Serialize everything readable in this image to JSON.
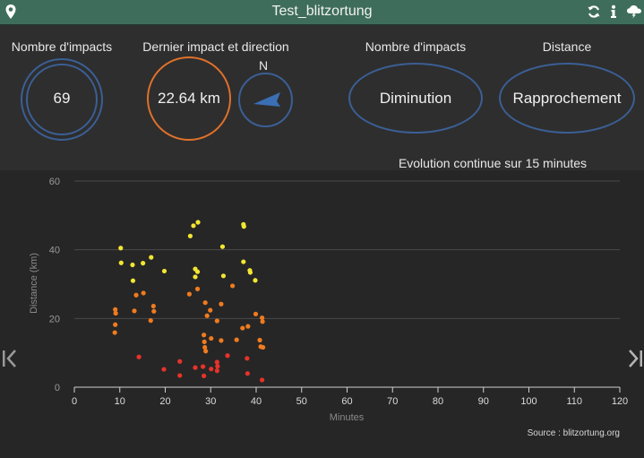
{
  "titlebar": {
    "title": "Test_blitzortung",
    "left_icon": "map-pin-icon",
    "right_icons": [
      "refresh-icon",
      "info-icon",
      "storm-cloud-icon"
    ]
  },
  "gauges": {
    "impacts_count": {
      "label": "Nombre d'impacts",
      "value": "69"
    },
    "last_impact": {
      "label": "Dernier impact et direction",
      "distance": "22.64 km",
      "compass_label": "N"
    },
    "impacts_trend": {
      "label": "Nombre d'impacts",
      "value": "Diminution"
    },
    "distance_trend": {
      "label": "Distance",
      "value": "Rapprochement"
    }
  },
  "colors": {
    "titlebar": "#3f6d5c",
    "ring_blue": "#3b5f95",
    "ring_orange": "#e0712a",
    "arrow_blue": "#3b6fb5",
    "point_near": "#e8322a",
    "point_mid": "#f07b1e",
    "point_far": "#f2e632"
  },
  "chart_caption": "Evolution continue sur 15 minutes",
  "source_text": "Source : blitzortung.org",
  "chart_data": {
    "type": "scatter",
    "xlabel": "Minutes",
    "ylabel": "Distance (km)",
    "xlim": [
      0,
      120
    ],
    "ylim": [
      0,
      60
    ],
    "x_ticks": [
      0,
      10,
      20,
      30,
      40,
      50,
      60,
      70,
      80,
      90,
      100,
      110,
      120
    ],
    "y_ticks": [
      0,
      20,
      40,
      60
    ],
    "grid": "horizontal",
    "points": [
      {
        "x": 10.2,
        "y": 40.5
      },
      {
        "x": 10.3,
        "y": 36.2
      },
      {
        "x": 12.8,
        "y": 35.6
      },
      {
        "x": 15.1,
        "y": 36.1
      },
      {
        "x": 16.9,
        "y": 37.8
      },
      {
        "x": 19.8,
        "y": 33.8
      },
      {
        "x": 12.9,
        "y": 31.0
      },
      {
        "x": 25.5,
        "y": 44.0
      },
      {
        "x": 26.2,
        "y": 47.0
      },
      {
        "x": 27.2,
        "y": 48.0
      },
      {
        "x": 26.6,
        "y": 34.4
      },
      {
        "x": 27.1,
        "y": 33.6
      },
      {
        "x": 26.6,
        "y": 32.1
      },
      {
        "x": 32.6,
        "y": 40.9
      },
      {
        "x": 37.2,
        "y": 47.4
      },
      {
        "x": 37.3,
        "y": 46.8
      },
      {
        "x": 37.2,
        "y": 36.5
      },
      {
        "x": 38.6,
        "y": 34.0
      },
      {
        "x": 38.7,
        "y": 33.4
      },
      {
        "x": 39.8,
        "y": 31.1
      },
      {
        "x": 32.8,
        "y": 32.4
      },
      {
        "x": 9.0,
        "y": 22.6
      },
      {
        "x": 9.1,
        "y": 21.5
      },
      {
        "x": 9.0,
        "y": 18.2
      },
      {
        "x": 8.9,
        "y": 15.9
      },
      {
        "x": 13.2,
        "y": 22.2
      },
      {
        "x": 13.6,
        "y": 26.8
      },
      {
        "x": 15.2,
        "y": 27.4
      },
      {
        "x": 17.4,
        "y": 23.6
      },
      {
        "x": 17.5,
        "y": 22.1
      },
      {
        "x": 16.8,
        "y": 19.4
      },
      {
        "x": 25.3,
        "y": 27.1
      },
      {
        "x": 27.1,
        "y": 28.6
      },
      {
        "x": 28.8,
        "y": 24.6
      },
      {
        "x": 29.9,
        "y": 22.4
      },
      {
        "x": 29.2,
        "y": 20.8
      },
      {
        "x": 28.5,
        "y": 15.2
      },
      {
        "x": 28.6,
        "y": 13.2
      },
      {
        "x": 28.7,
        "y": 11.6
      },
      {
        "x": 28.9,
        "y": 10.5
      },
      {
        "x": 30.1,
        "y": 14.2
      },
      {
        "x": 31.4,
        "y": 19.3
      },
      {
        "x": 32.3,
        "y": 13.6
      },
      {
        "x": 32.3,
        "y": 24.2
      },
      {
        "x": 34.8,
        "y": 29.5
      },
      {
        "x": 35.7,
        "y": 13.8
      },
      {
        "x": 37.0,
        "y": 17.2
      },
      {
        "x": 38.2,
        "y": 17.7
      },
      {
        "x": 39.9,
        "y": 21.3
      },
      {
        "x": 41.3,
        "y": 20.2
      },
      {
        "x": 41.4,
        "y": 19.1
      },
      {
        "x": 40.8,
        "y": 13.7
      },
      {
        "x": 41.0,
        "y": 11.8
      },
      {
        "x": 41.5,
        "y": 11.6
      },
      {
        "x": 14.2,
        "y": 8.8
      },
      {
        "x": 19.7,
        "y": 5.2
      },
      {
        "x": 23.2,
        "y": 7.5
      },
      {
        "x": 23.2,
        "y": 3.4
      },
      {
        "x": 26.6,
        "y": 5.7
      },
      {
        "x": 28.3,
        "y": 6.0
      },
      {
        "x": 28.5,
        "y": 3.3
      },
      {
        "x": 30.1,
        "y": 5.3
      },
      {
        "x": 31.4,
        "y": 7.3
      },
      {
        "x": 31.5,
        "y": 6.1
      },
      {
        "x": 31.4,
        "y": 4.8
      },
      {
        "x": 33.7,
        "y": 9.2
      },
      {
        "x": 38.0,
        "y": 8.4
      },
      {
        "x": 38.1,
        "y": 4.0
      },
      {
        "x": 41.3,
        "y": 2.1
      }
    ]
  }
}
